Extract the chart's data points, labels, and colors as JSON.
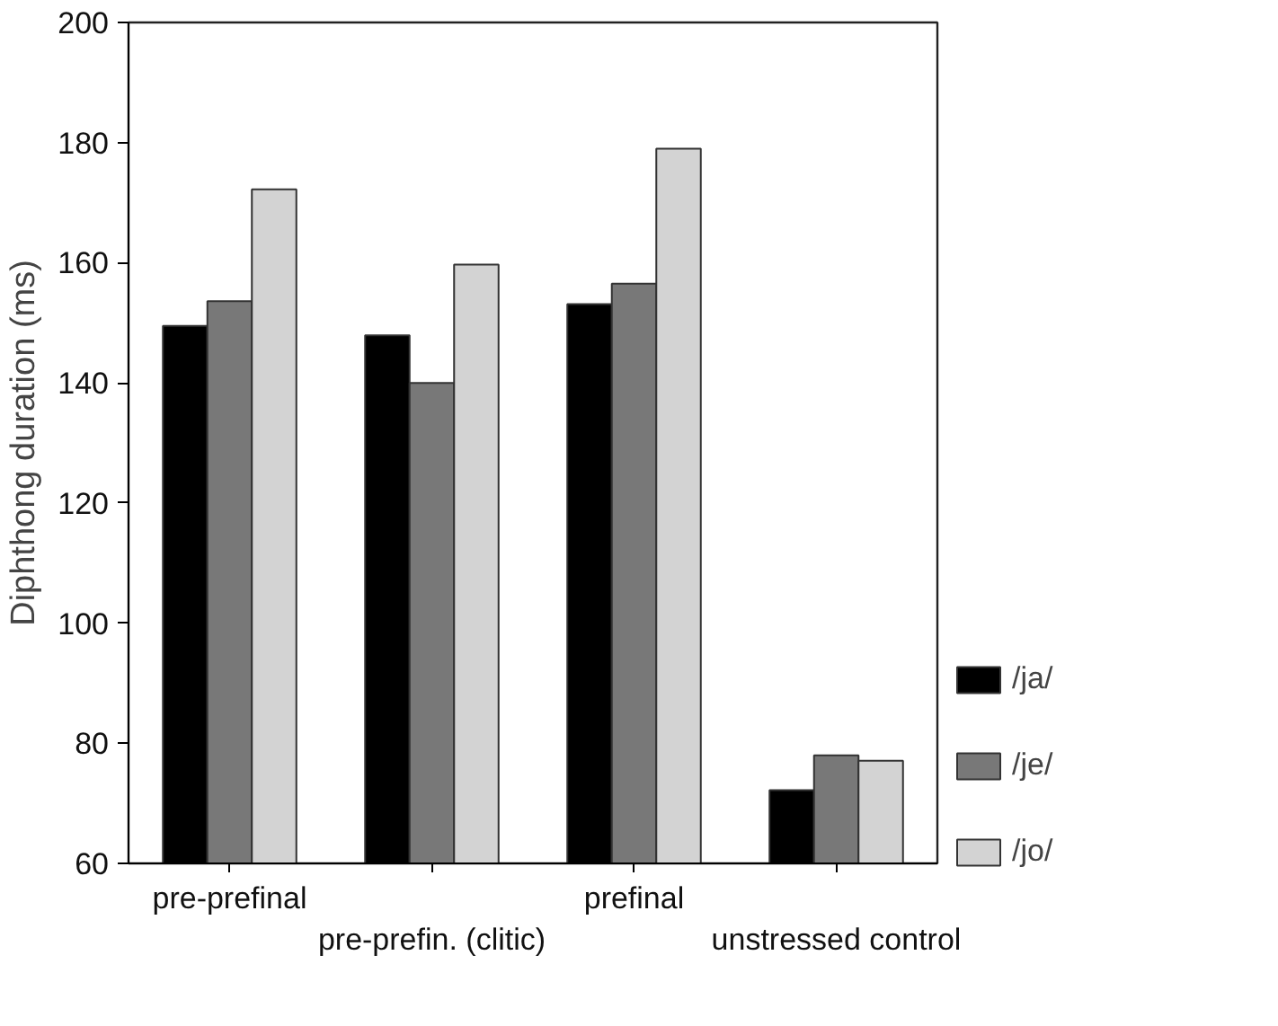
{
  "chart_data": {
    "type": "bar",
    "ylabel": "Diphthong duration (ms)",
    "categories": [
      "pre-prefinal",
      "pre-prefin. (clitic)",
      "prefinal",
      "unstressed control"
    ],
    "series": [
      {
        "name": "/ja/",
        "color": "#000000",
        "values": [
          149.5,
          147.9,
          153.1,
          72.2
        ]
      },
      {
        "name": "/je/",
        "color": "#787878",
        "values": [
          153.6,
          140,
          156.5,
          78
        ]
      },
      {
        "name": "/jo/",
        "color": "#d3d3d3",
        "values": [
          172.2,
          159.7,
          179,
          77.1
        ]
      }
    ],
    "ylim": [
      60,
      200
    ],
    "yticks": [
      60,
      80,
      100,
      120,
      140,
      160,
      180,
      200
    ],
    "grid": false,
    "legend": "bottom right"
  }
}
